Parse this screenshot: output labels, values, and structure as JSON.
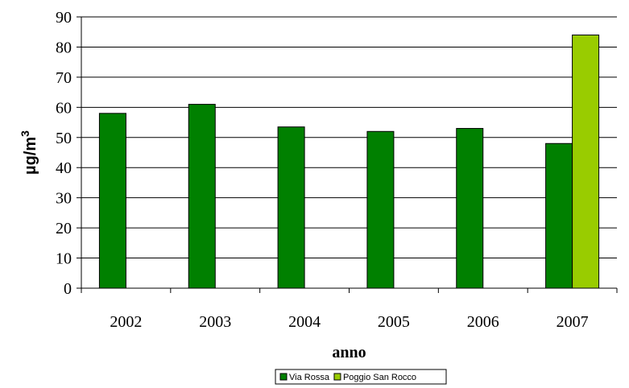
{
  "chart_data": {
    "type": "bar",
    "categories": [
      "2002",
      "2003",
      "2004",
      "2005",
      "2006",
      "2007"
    ],
    "series": [
      {
        "name": "Via Rossa",
        "values": [
          58,
          61,
          53.5,
          52,
          53,
          48
        ],
        "color": "#008000"
      },
      {
        "name": "Poggio San Rocco",
        "values": [
          null,
          null,
          null,
          null,
          null,
          84
        ],
        "color": "#99cc00"
      }
    ],
    "xlabel": "anno",
    "ylabel": "µg/m",
    "ylabel_superscript": "3",
    "ylim": [
      0,
      90
    ],
    "yticks": [
      0,
      10,
      20,
      30,
      40,
      50,
      60,
      70,
      80,
      90
    ],
    "grid": true,
    "legend_position": "bottom-center"
  }
}
